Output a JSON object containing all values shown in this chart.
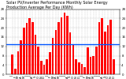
{
  "title": "Solar PV/Inverter Performance Monthly Solar Energy Production Average Per Day (KWh)",
  "bar_color": "#ff0000",
  "avg_line_color": "#0055ff",
  "background_color": "#ffffff",
  "plot_bg_color": "#ffffff",
  "grid_color": "#aaaaaa",
  "avg_value": 13.0,
  "ylim": [
    0,
    28
  ],
  "yticks": [
    0,
    4,
    8,
    12,
    16,
    20,
    24,
    28
  ],
  "num_years": 3,
  "values": [
    8.5,
    2.5,
    10.0,
    14.5,
    20.0,
    22.0,
    24.0,
    22.5,
    17.0,
    12.0,
    6.0,
    4.0,
    6.5,
    9.5,
    15.5,
    19.0,
    22.5,
    24.5,
    26.5,
    25.0,
    18.0,
    12.5,
    6.5,
    5.0,
    4.5,
    3.0,
    11.5,
    7.5,
    8.0,
    12.0,
    22.5,
    24.0,
    18.5,
    21.0,
    23.5,
    6.5
  ],
  "bar_width": 0.7,
  "title_fontsize": 3.5,
  "tick_fontsize": 2.8,
  "avg_linewidth": 1.0,
  "figsize": [
    1.6,
    1.0
  ],
  "dpi": 100
}
